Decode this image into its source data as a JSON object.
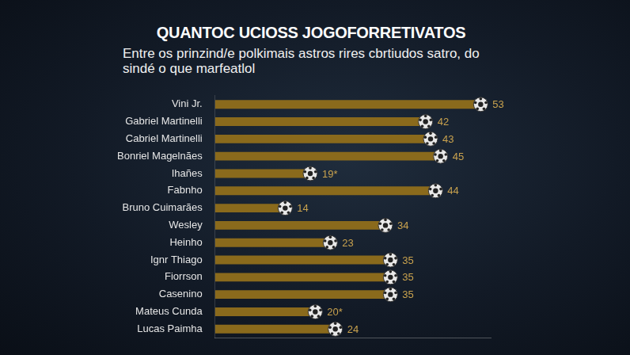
{
  "chart_data": {
    "type": "bar",
    "orientation": "horizontal",
    "title": "QUANTOC UCIOSS JOGOFORRETIVATOS",
    "subtitle": "Entre os prinzind/e polkimais astros rires cbrtiudos satro, do sindé o que marfeatlol",
    "categories": [
      "Vini Jr.",
      "Gabriel Martinelli",
      "Cabriel Martinelli",
      "Bonriel Magelnães",
      "Ihañes",
      "Fabnho",
      "Bruno Cuimarães",
      "Wesley",
      "Heinho",
      "Ignr Thiago",
      "Fiorrson",
      "Casenino",
      "Mateus Cunda",
      "Lucas Paimha"
    ],
    "values": [
      53,
      42,
      43,
      45,
      19,
      44,
      14,
      34,
      23,
      35,
      35,
      35,
      20,
      24
    ],
    "value_labels": [
      "53",
      "42",
      "43",
      "45",
      "19*",
      "44",
      "14",
      "34",
      "23",
      "35",
      "35",
      "35",
      "20*",
      "24"
    ],
    "color": "#8a6a1c",
    "xlim": [
      0,
      55
    ],
    "grid": false,
    "tick_labels": "y",
    "data_labels": true
  }
}
